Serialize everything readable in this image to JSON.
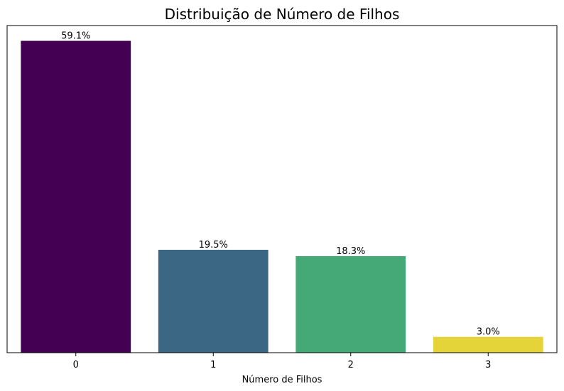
{
  "chart_data": {
    "type": "bar",
    "title": "Distribuição de Número de Filhos",
    "xlabel": "Número de Filhos",
    "ylabel": "",
    "categories": [
      "0",
      "1",
      "2",
      "3"
    ],
    "values": [
      59.1,
      19.5,
      18.3,
      3.0
    ],
    "value_labels": [
      "59.1%",
      "19.5%",
      "18.3%",
      "3.0%"
    ],
    "colors": [
      "#440154",
      "#3b6785",
      "#44a877",
      "#e4d43a"
    ],
    "ylim": [
      0,
      62
    ],
    "grid": false,
    "legend": "none"
  }
}
